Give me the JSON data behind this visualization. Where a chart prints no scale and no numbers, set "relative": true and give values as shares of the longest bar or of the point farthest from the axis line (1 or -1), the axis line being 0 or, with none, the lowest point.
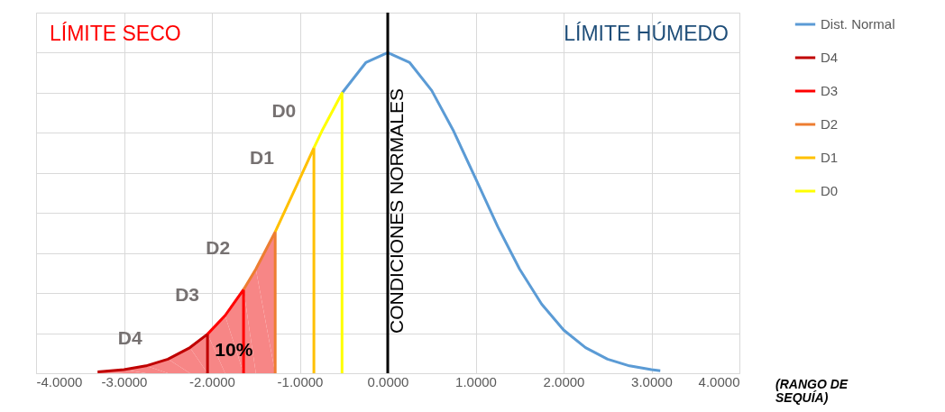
{
  "chart_data": {
    "type": "line",
    "relative": true,
    "xlabel": "(RANGO DE SEQUÍA)",
    "xlim": [
      -4,
      4
    ],
    "xticks": [
      {
        "value": -4,
        "label": "-4.0000"
      },
      {
        "value": -3,
        "label": "-3.0000"
      },
      {
        "value": -2,
        "label": "-2.0000"
      },
      {
        "value": -1,
        "label": "-1.0000"
      },
      {
        "value": 0,
        "label": "0.0000"
      },
      {
        "value": 1,
        "label": "1.0000"
      },
      {
        "value": 2,
        "label": "2.0000"
      },
      {
        "value": 3,
        "label": "3.0000"
      },
      {
        "value": 4,
        "label": "4.0000"
      }
    ],
    "grid": true,
    "legend": "right",
    "series": [
      {
        "type": "area",
        "color": "#f78686",
        "x": [
          -3.3,
          -3.0,
          -2.75,
          -2.5,
          -2.25,
          -2.05,
          -1.85,
          -1.64,
          -1.5,
          -1.28
        ],
        "values": [
          0.004,
          0.011,
          0.023,
          0.044,
          0.08,
          0.122,
          0.18,
          0.261,
          0.325,
          0.441
        ]
      },
      {
        "name": "Dist. Normal",
        "color": "#5b9bd5",
        "x": [
          -0.52,
          -0.25,
          0,
          0.25,
          0.5,
          0.75,
          1.0,
          1.25,
          1.5,
          1.75,
          2.0,
          2.25,
          2.5,
          2.75,
          3.0,
          3.1
        ],
        "values": [
          0.874,
          0.969,
          1.0,
          0.969,
          0.882,
          0.755,
          0.607,
          0.458,
          0.325,
          0.216,
          0.135,
          0.08,
          0.044,
          0.023,
          0.011,
          0.008
        ]
      },
      {
        "name": "D4",
        "color": "#c00000",
        "x": [
          -3.3,
          -3.0,
          -2.75,
          -2.5,
          -2.25,
          -2.05,
          -2.05
        ],
        "values": [
          0.004,
          0.011,
          0.023,
          0.044,
          0.08,
          0.122,
          0
        ]
      },
      {
        "name": "D3",
        "color": "#ff0000",
        "x": [
          -2.05,
          -1.85,
          -1.64,
          -1.64
        ],
        "values": [
          0.122,
          0.18,
          0.261,
          0
        ]
      },
      {
        "name": "D2",
        "color": "#ed7d31",
        "x": [
          -1.64,
          -1.5,
          -1.28,
          -1.28
        ],
        "values": [
          0.261,
          0.325,
          0.441,
          0
        ]
      },
      {
        "name": "D1",
        "color": "#ffc000",
        "x": [
          -1.28,
          -1.0,
          -0.84,
          -0.84
        ],
        "values": [
          0.441,
          0.607,
          0.703,
          0
        ]
      },
      {
        "name": "D0",
        "color": "#ffff00",
        "x": [
          -0.84,
          -0.75,
          -0.52,
          -0.52
        ],
        "values": [
          0.703,
          0.755,
          0.874,
          0
        ]
      }
    ],
    "ref_lines": [
      {
        "axis": "x",
        "value": 0,
        "label": "CONDICIONES NORMALES",
        "color": "#000000"
      }
    ],
    "annotations": [
      "LÍMITE SECO",
      "LÍMITE HÚMEDO",
      {
        "text": "D4",
        "x": -2.5,
        "y": 0.044
      },
      {
        "text": "D3",
        "x": -1.85,
        "y": 0.18
      },
      {
        "text": "D2",
        "x": -1.5,
        "y": 0.325
      },
      {
        "text": "D1",
        "x": -1.0,
        "y": 0.607
      },
      {
        "text": "D0",
        "x": -0.75,
        "y": 0.755
      },
      {
        "text": "10%",
        "x": -1.75,
        "y": 0.07
      }
    ]
  }
}
